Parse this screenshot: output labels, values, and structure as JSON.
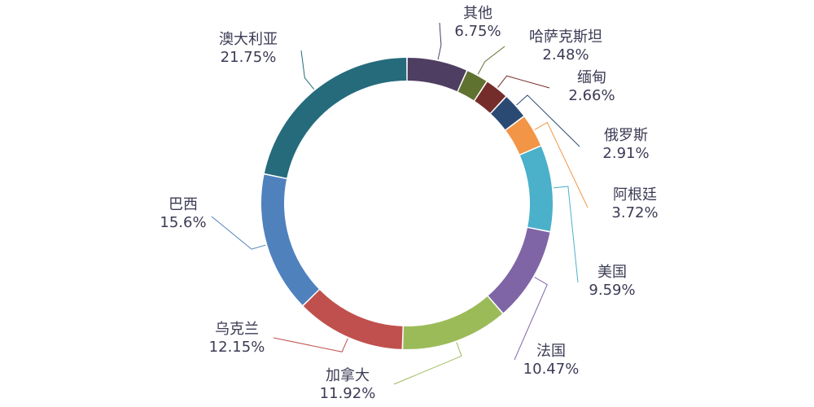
{
  "chart_data": {
    "type": "pie",
    "variant": "donut",
    "title": "",
    "legend": "none",
    "start_angle_deg": 0,
    "direction": "clockwise",
    "slices": [
      {
        "category": "其他",
        "value": 6.75,
        "label": "6.75%",
        "color": "#4e3e62"
      },
      {
        "category": "哈萨克斯坦",
        "value": 2.48,
        "label": "2.48%",
        "color": "#5f7230"
      },
      {
        "category": "缅甸",
        "value": 2.66,
        "label": "2.66%",
        "color": "#742d2a"
      },
      {
        "category": "俄罗斯",
        "value": 2.91,
        "label": "2.91%",
        "color": "#2b4a73"
      },
      {
        "category": "阿根廷",
        "value": 3.72,
        "label": "3.72%",
        "color": "#f29546"
      },
      {
        "category": "美国",
        "value": 9.59,
        "label": "9.59%",
        "color": "#4bb0c9"
      },
      {
        "category": "法国",
        "value": 10.47,
        "label": "10.47%",
        "color": "#7f65a5"
      },
      {
        "category": "加拿大",
        "value": 11.92,
        "label": "11.92%",
        "color": "#9bbb59"
      },
      {
        "category": "乌克兰",
        "value": 12.15,
        "label": "12.15%",
        "color": "#c0504d"
      },
      {
        "category": "巴西",
        "value": 15.6,
        "label": "15.6%",
        "color": "#4f81bd"
      },
      {
        "category": "澳大利亚",
        "value": 21.75,
        "label": "21.75%",
        "color": "#256b7c"
      }
    ]
  }
}
